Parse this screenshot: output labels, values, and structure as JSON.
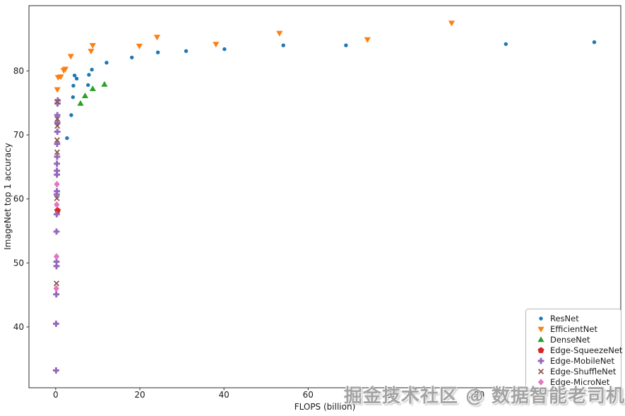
{
  "chart_data": {
    "type": "scatter",
    "title": "",
    "xlabel": "FLOPS (billion)",
    "ylabel": "ImageNet top 1 accuracy",
    "xlim": [
      -6.35,
      134.3
    ],
    "ylim": [
      30.5,
      90.2
    ],
    "x_ticks": [
      0,
      20,
      40,
      60,
      80,
      100
    ],
    "y_ticks": [
      40,
      50,
      60,
      70,
      80
    ],
    "grid": false,
    "legend_position": "lower right",
    "series": [
      {
        "name": "ResNet",
        "marker": "circle",
        "color": "#1f77b4",
        "points": [
          [
            2.7,
            69.5
          ],
          [
            3.7,
            73.1
          ],
          [
            4.1,
            75.9
          ],
          [
            4.2,
            77.7
          ],
          [
            4.5,
            79.3
          ],
          [
            5.0,
            78.8
          ],
          [
            7.7,
            77.8
          ],
          [
            7.9,
            79.4
          ],
          [
            8.6,
            80.2
          ],
          [
            12.1,
            81.3
          ],
          [
            18.1,
            82.1
          ],
          [
            24.3,
            82.9
          ],
          [
            31.0,
            83.1
          ],
          [
            40.1,
            83.4
          ],
          [
            54.1,
            84.0
          ],
          [
            69.0,
            84.0
          ],
          [
            107.0,
            84.2
          ],
          [
            128.0,
            84.5
          ]
        ]
      },
      {
        "name": "EfficientNet",
        "marker": "triangle_down",
        "color": "#ff7f0e",
        "points": [
          [
            0.4,
            77.1
          ],
          [
            0.6,
            79.0
          ],
          [
            1.2,
            79.1
          ],
          [
            1.9,
            80.1
          ],
          [
            2.3,
            80.3
          ],
          [
            3.6,
            82.3
          ],
          [
            8.4,
            83.1
          ],
          [
            8.8,
            84.0
          ],
          [
            19.9,
            83.9
          ],
          [
            24.1,
            85.3
          ],
          [
            38.1,
            84.2
          ],
          [
            53.2,
            85.9
          ],
          [
            74.1,
            84.9
          ],
          [
            94.1,
            87.5
          ]
        ]
      },
      {
        "name": "DenseNet",
        "marker": "triangle_up",
        "color": "#2ca02c",
        "points": [
          [
            5.9,
            74.9
          ],
          [
            7.0,
            76.1
          ],
          [
            8.8,
            77.2
          ],
          [
            11.6,
            77.9
          ]
        ]
      },
      {
        "name": "Edge-SqueezeNet",
        "marker": "pentagon",
        "color": "#d62728",
        "points": [
          [
            0.45,
            58.2
          ]
        ]
      },
      {
        "name": "Edge-MobileNet",
        "marker": "plus",
        "color": "#9467bd",
        "points": [
          [
            0.5,
            75.4
          ],
          [
            0.45,
            74.9
          ],
          [
            0.4,
            73.1
          ],
          [
            0.4,
            71.9
          ],
          [
            0.4,
            70.5
          ],
          [
            0.35,
            68.6
          ],
          [
            0.35,
            66.6
          ],
          [
            0.3,
            65.5
          ],
          [
            0.3,
            64.4
          ],
          [
            0.3,
            63.8
          ],
          [
            0.3,
            61.2
          ],
          [
            0.25,
            60.7
          ],
          [
            0.25,
            57.6
          ],
          [
            0.2,
            54.9
          ],
          [
            0.2,
            50.2
          ],
          [
            0.2,
            49.5
          ],
          [
            0.15,
            45.1
          ],
          [
            0.1,
            40.5
          ],
          [
            0.1,
            33.2
          ]
        ]
      },
      {
        "name": "Edge-ShuffleNet",
        "marker": "x",
        "color": "#8c564b",
        "points": [
          [
            0.4,
            75.2
          ],
          [
            0.4,
            72.5
          ],
          [
            0.4,
            71.4
          ],
          [
            0.35,
            69.2
          ],
          [
            0.35,
            67.3
          ],
          [
            0.3,
            60.1
          ],
          [
            0.2,
            46.8
          ]
        ]
      },
      {
        "name": "Edge-MicroNet",
        "marker": "diamond",
        "color": "#e377c2",
        "points": [
          [
            0.3,
            62.3
          ],
          [
            0.25,
            59.1
          ],
          [
            0.2,
            51.0
          ],
          [
            0.15,
            46.0
          ]
        ]
      }
    ]
  },
  "watermark": {
    "text": "掘金技术社区 @ 数据智能老司机",
    "color": "#a3a3a3"
  }
}
